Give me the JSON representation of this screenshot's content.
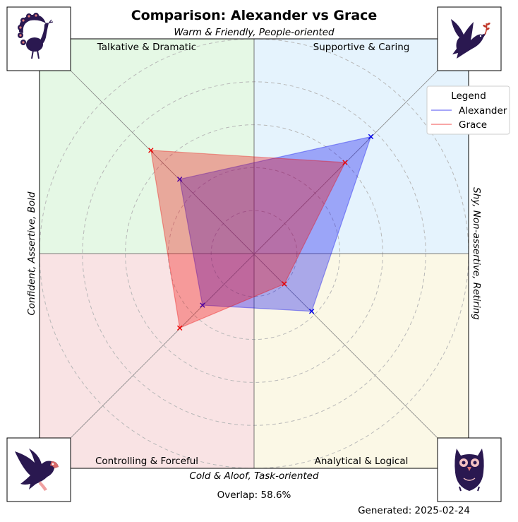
{
  "chart_data": {
    "type": "radar",
    "title": "Comparison: Alexander vs Grace",
    "axis_labels": {
      "top": "Warm & Friendly, People-oriented",
      "bottom": "Cold & Aloof, Task-oriented",
      "left": "Confident, Assertive, Bold",
      "right": "Shy, Non-assertive, Retiring"
    },
    "quadrants": [
      {
        "key": "tl",
        "label": "Talkative & Dramatic",
        "color": "#e5f8e5",
        "icon": "peacock-icon"
      },
      {
        "key": "tr",
        "label": "Supportive & Caring",
        "color": "#e5f3fd",
        "icon": "dove-icon"
      },
      {
        "key": "bl",
        "label": "Controlling & Forceful",
        "color": "#f9e3e4",
        "icon": "eagle-icon"
      },
      {
        "key": "br",
        "label": "Analytical & Logical",
        "color": "#fbf8e6",
        "icon": "owl-icon"
      }
    ],
    "directions": [
      "Supportive & Caring",
      "Talkative & Dramatic",
      "Controlling & Forceful",
      "Analytical & Logical"
    ],
    "rlim": [
      0,
      1
    ],
    "grid": true,
    "series": [
      {
        "name": "Alexander",
        "color": "#0000ee",
        "values": [
          0.77,
          0.49,
          0.34,
          0.38
        ]
      },
      {
        "name": "Grace",
        "color": "#ee0000",
        "values": [
          0.6,
          0.68,
          0.49,
          0.2
        ]
      }
    ],
    "legend": {
      "title": "Legend",
      "position": "upper-right"
    },
    "overlap_text": "Overlap: 58.6%",
    "generated_text": "Generated: 2025-02-24"
  }
}
